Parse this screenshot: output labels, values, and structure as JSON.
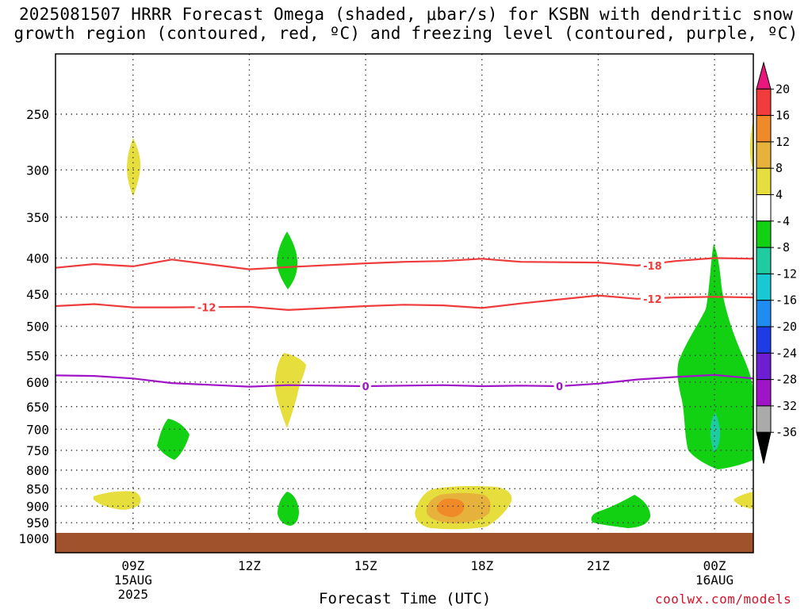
{
  "chart_data": {
    "type": "contour",
    "title_line1": "2025081507 HRRR Forecast Omega (shaded, μbar/s) for KSBN with dendritic snow",
    "title_line2": "growth region (contoured, red, ºC) and freezing level (contoured, purple, ºC)",
    "xlabel": "Forecast Time (UTC)",
    "credit": "coolwx.com/models",
    "x_ticks": [
      {
        "label": "09Z",
        "sub1": "15AUG",
        "sub2": "2025",
        "hour": 9
      },
      {
        "label": "12Z",
        "hour": 12
      },
      {
        "label": "15Z",
        "hour": 15
      },
      {
        "label": "18Z",
        "hour": 18
      },
      {
        "label": "21Z",
        "hour": 21
      },
      {
        "label": "00Z",
        "sub1": "16AUG",
        "hour": 24
      }
    ],
    "xlim_hours": [
      7,
      25
    ],
    "y_ticks": [
      250,
      300,
      350,
      400,
      450,
      500,
      550,
      600,
      650,
      700,
      750,
      800,
      850,
      900,
      950,
      1000
    ],
    "ylim_mb": [
      200,
      1010
    ],
    "y_scale": "log",
    "grid": true,
    "colorbar": {
      "labels": [
        "20",
        "16",
        "12",
        "8",
        "4",
        "-4",
        "-8",
        "-12",
        "-16",
        "-20",
        "-24",
        "-28",
        "-32",
        "-36"
      ],
      "colors": [
        "#e8177e",
        "#f23c3c",
        "#f08a28",
        "#e6b23c",
        "#e6de3c",
        "#ffffff",
        "#12d012",
        "#1ecca0",
        "#18c8d2",
        "#1e8cf0",
        "#1e3ce6",
        "#6e1ed2",
        "#a014c8",
        "#aaaaaa",
        "#000000"
      ]
    },
    "contours": [
      {
        "kind": "dgz",
        "value": "-18",
        "color": "#ee3c3c",
        "points": [
          [
            7,
            413
          ],
          [
            8,
            408
          ],
          [
            9,
            411
          ],
          [
            10,
            402
          ],
          [
            12,
            415
          ],
          [
            13,
            412
          ],
          [
            15,
            407
          ],
          [
            16,
            405
          ],
          [
            17,
            404
          ],
          [
            18,
            401
          ],
          [
            19,
            405
          ],
          [
            21,
            406
          ],
          [
            22,
            410
          ],
          [
            23,
            404
          ],
          [
            24,
            400
          ],
          [
            25,
            401
          ]
        ],
        "labels": [
          [
            22.4,
            410
          ]
        ]
      },
      {
        "kind": "dgz",
        "value": "-12",
        "color": "#ee3c3c",
        "points": [
          [
            7,
            468
          ],
          [
            8,
            465
          ],
          [
            9,
            470
          ],
          [
            10,
            470
          ],
          [
            12,
            469
          ],
          [
            13,
            474
          ],
          [
            15,
            468
          ],
          [
            16,
            466
          ],
          [
            17,
            467
          ],
          [
            18,
            471
          ],
          [
            19,
            464
          ],
          [
            20,
            458
          ],
          [
            21,
            452
          ],
          [
            22,
            457
          ],
          [
            23,
            455
          ],
          [
            24,
            454
          ],
          [
            25,
            455
          ]
        ],
        "labels": [
          [
            10.9,
            470
          ],
          [
            22.4,
            457
          ]
        ]
      },
      {
        "kind": "freezing",
        "value": "0",
        "color": "#a014c8",
        "points": [
          [
            7,
            587
          ],
          [
            8,
            588
          ],
          [
            9,
            593
          ],
          [
            10,
            602
          ],
          [
            12,
            609
          ],
          [
            13,
            606
          ],
          [
            15,
            608
          ],
          [
            16,
            607
          ],
          [
            17,
            606
          ],
          [
            18,
            608
          ],
          [
            19,
            607
          ],
          [
            20,
            608
          ],
          [
            21,
            603
          ],
          [
            22,
            595
          ],
          [
            23,
            590
          ],
          [
            24,
            586
          ],
          [
            25,
            593
          ]
        ],
        "labels": [
          [
            15,
            608
          ],
          [
            20,
            608
          ]
        ]
      }
    ],
    "omega_regions": [
      {
        "value_range": "4 to 8",
        "color": "#e6de3c",
        "center_hour": 9.0,
        "center_mb": 300
      },
      {
        "value_range": "4 to 8",
        "color": "#e6de3c",
        "center_hour": 25,
        "center_mb": 270
      },
      {
        "value_range": "-4 to -8",
        "color": "#12d012",
        "center_hour": 13.0,
        "center_mb": 408
      },
      {
        "value_range": "4 to 8",
        "color": "#e6de3c",
        "center_hour": 13.0,
        "center_mb": 610
      },
      {
        "value_range": "-4 to -8",
        "color": "#12d012",
        "center_hour": 10.1,
        "center_mb": 725
      },
      {
        "value_range": "-4 to -8",
        "color": "#12d012",
        "center_hour": 24.3,
        "center_mb": 620
      },
      {
        "value_range": "-8 to -12",
        "color": "#1ecca0",
        "center_hour": 24.0,
        "center_mb": 720
      },
      {
        "value_range": "4 to 8",
        "color": "#e6de3c",
        "center_hour": 8.6,
        "center_mb": 885
      },
      {
        "value_range": "-4 to -8",
        "color": "#12d012",
        "center_hour": 13.0,
        "center_mb": 915
      },
      {
        "value_range": "4 to 12",
        "color": "#e6de3c",
        "center_hour": 17.2,
        "center_mb": 910
      },
      {
        "value_range": "12 to 16",
        "color": "#f08a28",
        "center_hour": 17.2,
        "center_mb": 920
      },
      {
        "value_range": "-4 to -8",
        "color": "#12d012",
        "center_hour": 22.0,
        "center_mb": 920
      },
      {
        "value_range": "4 to 8",
        "color": "#e6de3c",
        "center_hour": 25,
        "center_mb": 905
      }
    ],
    "ground_color": "#a0522d"
  }
}
